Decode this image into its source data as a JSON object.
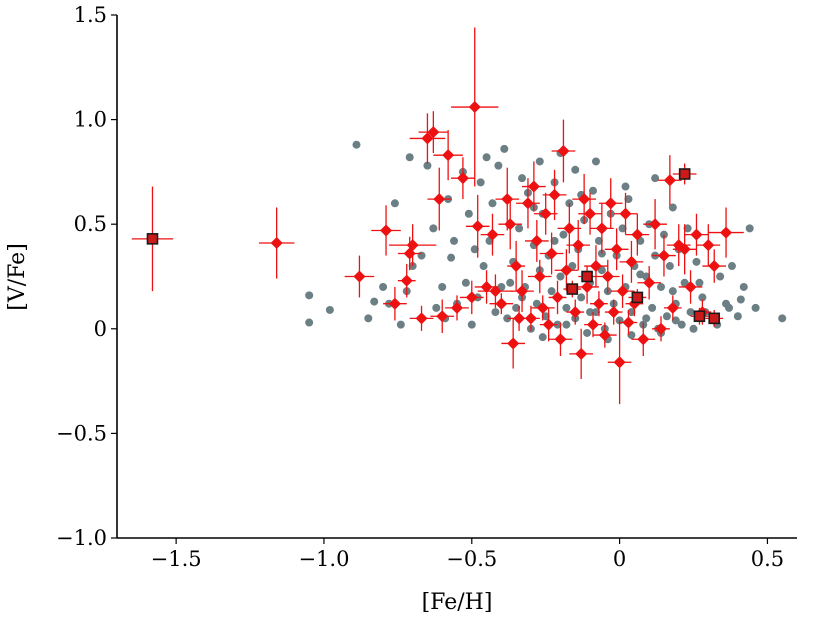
{
  "chart_data": {
    "type": "scatter",
    "title": "",
    "xlabel": "[Fe/H]",
    "ylabel": "[V/Fe]",
    "xlim": [
      -1.7,
      0.6
    ],
    "ylim": [
      -1.0,
      1.5
    ],
    "xticks": [
      -1.5,
      -1.0,
      -0.5,
      0,
      0.5
    ],
    "xtick_labels": [
      "−1.5",
      "−1.0",
      "−0.5",
      "0",
      "0.5"
    ],
    "yticks": [
      -1.0,
      -0.5,
      0,
      0.5,
      1.0,
      1.5
    ],
    "ytick_labels": [
      "−1.0",
      "−0.5",
      "0",
      "0.5",
      "1.0",
      "1.5"
    ],
    "grid": false,
    "legend": "none",
    "colors": {
      "comparison": "#6b7f85",
      "sample": "#ee1111",
      "highlight_fill": "#cc1a1a",
      "highlight_edge": "#1a1a1a"
    },
    "series": [
      {
        "marker": "circle",
        "points": [
          [
            -0.89,
            0.88
          ],
          [
            -1.05,
            0.16
          ],
          [
            -1.05,
            0.03
          ],
          [
            -0.98,
            0.09
          ],
          [
            -0.83,
            0.13
          ],
          [
            -0.78,
            0.12
          ],
          [
            -0.85,
            0.05
          ],
          [
            -0.8,
            0.2
          ],
          [
            -0.74,
            0.02
          ],
          [
            -0.72,
            0.18
          ],
          [
            -0.7,
            0.3
          ],
          [
            -0.76,
            0.6
          ],
          [
            -0.71,
            0.82
          ],
          [
            -0.65,
            0.78
          ],
          [
            -0.62,
            0.1
          ],
          [
            -0.6,
            0.2
          ],
          [
            -0.57,
            0.34
          ],
          [
            -0.55,
            0.12
          ],
          [
            -0.52,
            0.22
          ],
          [
            -0.5,
            0.02
          ],
          [
            -0.48,
            0.15
          ],
          [
            -0.46,
            0.3
          ],
          [
            -0.44,
            0.42
          ],
          [
            -0.43,
            0.6
          ],
          [
            -0.41,
            0.78
          ],
          [
            -0.4,
            0.2
          ],
          [
            -0.38,
            0.05
          ],
          [
            -0.36,
            0.32
          ],
          [
            -0.35,
            0.1
          ],
          [
            -0.34,
            0.48
          ],
          [
            -0.32,
            0.2
          ],
          [
            -0.31,
            0.65
          ],
          [
            -0.3,
            0.0
          ],
          [
            -0.29,
            0.4
          ],
          [
            -0.28,
            0.12
          ],
          [
            -0.27,
            0.28
          ],
          [
            -0.26,
            0.55
          ],
          [
            -0.25,
            0.06
          ],
          [
            -0.24,
            0.35
          ],
          [
            -0.23,
            0.18
          ],
          [
            -0.22,
            0.7
          ],
          [
            -0.21,
            0.02
          ],
          [
            -0.2,
            0.25
          ],
          [
            -0.19,
            0.45
          ],
          [
            -0.18,
            0.1
          ],
          [
            -0.17,
            0.6
          ],
          [
            -0.16,
            0.3
          ],
          [
            -0.15,
            0.05
          ],
          [
            -0.14,
            0.38
          ],
          [
            -0.13,
            0.15
          ],
          [
            -0.12,
            0.52
          ],
          [
            -0.11,
            -0.02
          ],
          [
            -0.1,
            0.22
          ],
          [
            -0.09,
            0.66
          ],
          [
            -0.08,
            0.08
          ],
          [
            -0.07,
            0.42
          ],
          [
            -0.06,
            0.28
          ],
          [
            -0.05,
            0.0
          ],
          [
            -0.04,
            0.18
          ],
          [
            -0.03,
            0.55
          ],
          [
            -0.02,
            0.12
          ],
          [
            -0.01,
            0.35
          ],
          [
            0.0,
            0.04
          ],
          [
            0.01,
            0.48
          ],
          [
            0.02,
            0.2
          ],
          [
            0.03,
            0.62
          ],
          [
            0.04,
            0.08
          ],
          [
            0.05,
            0.3
          ],
          [
            0.06,
            0.15
          ],
          [
            0.07,
            0.42
          ],
          [
            0.08,
            0.02
          ],
          [
            0.09,
            0.25
          ],
          [
            0.1,
            0.5
          ],
          [
            0.11,
            0.1
          ],
          [
            0.12,
            0.35
          ],
          [
            0.13,
            0.0
          ],
          [
            0.14,
            0.2
          ],
          [
            0.15,
            0.45
          ],
          [
            0.16,
            0.06
          ],
          [
            0.17,
            0.3
          ],
          [
            0.18,
            0.58
          ],
          [
            0.19,
            0.12
          ],
          [
            0.2,
            0.38
          ],
          [
            0.21,
            0.02
          ],
          [
            0.22,
            0.22
          ],
          [
            0.23,
            0.48
          ],
          [
            0.24,
            0.08
          ],
          [
            0.26,
            0.32
          ],
          [
            0.28,
            0.15
          ],
          [
            0.3,
            0.4
          ],
          [
            0.32,
            0.05
          ],
          [
            0.34,
            0.25
          ],
          [
            0.36,
            0.12
          ],
          [
            0.38,
            0.3
          ],
          [
            0.4,
            0.06
          ],
          [
            0.42,
            0.2
          ],
          [
            0.44,
            0.48
          ],
          [
            0.46,
            0.1
          ],
          [
            0.55,
            0.05
          ],
          [
            -0.58,
            0.62
          ],
          [
            -0.53,
            0.75
          ],
          [
            -0.47,
            0.7
          ],
          [
            -0.45,
            0.82
          ],
          [
            -0.39,
            0.86
          ],
          [
            -0.33,
            0.72
          ],
          [
            -0.27,
            0.8
          ],
          [
            -0.2,
            0.84
          ],
          [
            -0.15,
            0.76
          ],
          [
            -0.08,
            0.8
          ],
          [
            0.12,
            0.72
          ],
          [
            -0.67,
            0.35
          ],
          [
            -0.63,
            0.48
          ],
          [
            -0.59,
            0.05
          ],
          [
            -0.56,
            0.42
          ],
          [
            -0.51,
            0.55
          ],
          [
            -0.49,
            0.38
          ],
          [
            -0.42,
            0.08
          ],
          [
            -0.37,
            0.22
          ],
          [
            -0.33,
            0.15
          ],
          [
            -0.26,
            -0.04
          ],
          [
            -0.18,
            0.02
          ],
          [
            -0.1,
            0.08
          ],
          [
            -0.04,
            -0.05
          ],
          [
            0.04,
            -0.03
          ],
          [
            0.09,
            0.05
          ],
          [
            0.14,
            -0.02
          ],
          [
            0.19,
            0.04
          ],
          [
            0.25,
            0.0
          ],
          [
            0.29,
            0.08
          ],
          [
            0.33,
            0.02
          ],
          [
            0.37,
            0.1
          ],
          [
            0.41,
            0.14
          ],
          [
            -0.22,
            0.42
          ],
          [
            -0.06,
            0.36
          ],
          [
            0.07,
            0.26
          ],
          [
            0.18,
            0.18
          ],
          [
            0.27,
            0.22
          ],
          [
            -0.29,
            0.58
          ],
          [
            -0.13,
            0.64
          ],
          [
            0.02,
            0.68
          ]
        ]
      },
      {
        "marker": "diamond",
        "points": [
          [
            -1.16,
            0.41,
            0.06,
            0.17
          ],
          [
            -0.88,
            0.25,
            0.05,
            0.1
          ],
          [
            -0.79,
            0.47,
            0.05,
            0.12
          ],
          [
            -0.76,
            0.12,
            0.04,
            0.08
          ],
          [
            -0.72,
            0.23,
            0.03,
            0.08
          ],
          [
            -0.71,
            0.36,
            0.04,
            0.08
          ],
          [
            -0.7,
            0.4,
            0.08,
            0.1
          ],
          [
            -0.67,
            0.05,
            0.04,
            0.06
          ],
          [
            -0.65,
            0.91,
            0.06,
            0.12
          ],
          [
            -0.63,
            0.94,
            0.05,
            0.1
          ],
          [
            -0.61,
            0.62,
            0.04,
            0.15
          ],
          [
            -0.6,
            0.06,
            0.04,
            0.08
          ],
          [
            -0.58,
            0.83,
            0.05,
            0.12
          ],
          [
            -0.53,
            0.72,
            0.04,
            0.1
          ],
          [
            -0.5,
            0.15,
            0.04,
            0.08
          ],
          [
            -0.49,
            1.06,
            0.08,
            0.38
          ],
          [
            -0.48,
            0.49,
            0.04,
            0.15
          ],
          [
            -0.45,
            0.2,
            0.04,
            0.08
          ],
          [
            -0.42,
            0.18,
            0.06,
            0.08
          ],
          [
            -0.4,
            0.12,
            0.04,
            0.05
          ],
          [
            -0.38,
            0.62,
            0.04,
            0.15
          ],
          [
            -0.37,
            0.5,
            0.04,
            0.12
          ],
          [
            -0.36,
            -0.07,
            0.04,
            0.12
          ],
          [
            -0.35,
            0.3,
            0.03,
            0.12
          ],
          [
            -0.33,
            0.18,
            0.04,
            0.1
          ],
          [
            -0.31,
            0.6,
            0.04,
            0.12
          ],
          [
            -0.3,
            0.05,
            0.03,
            0.06
          ],
          [
            -0.29,
            0.68,
            0.04,
            0.12
          ],
          [
            -0.28,
            0.42,
            0.04,
            0.1
          ],
          [
            -0.27,
            0.25,
            0.04,
            0.08
          ],
          [
            -0.26,
            0.1,
            0.04,
            0.06
          ],
          [
            -0.25,
            0.55,
            0.04,
            0.1
          ],
          [
            -0.24,
            0.02,
            0.03,
            0.08
          ],
          [
            -0.23,
            0.36,
            0.04,
            0.1
          ],
          [
            -0.22,
            0.64,
            0.04,
            0.12
          ],
          [
            -0.21,
            0.15,
            0.03,
            0.08
          ],
          [
            -0.2,
            -0.05,
            0.04,
            0.08
          ],
          [
            -0.19,
            0.85,
            0.04,
            0.15
          ],
          [
            -0.18,
            0.28,
            0.04,
            0.1
          ],
          [
            -0.17,
            0.48,
            0.04,
            0.12
          ],
          [
            -0.15,
            0.08,
            0.03,
            0.06
          ],
          [
            -0.14,
            0.4,
            0.04,
            0.12
          ],
          [
            -0.13,
            -0.12,
            0.04,
            0.12
          ],
          [
            -0.12,
            0.62,
            0.04,
            0.12
          ],
          [
            -0.11,
            0.2,
            0.04,
            0.08
          ],
          [
            -0.1,
            0.55,
            0.04,
            0.1
          ],
          [
            -0.09,
            0.02,
            0.03,
            0.06
          ],
          [
            -0.08,
            0.3,
            0.04,
            0.1
          ],
          [
            -0.07,
            0.12,
            0.03,
            0.06
          ],
          [
            -0.06,
            0.48,
            0.04,
            0.12
          ],
          [
            -0.05,
            -0.03,
            0.04,
            0.06
          ],
          [
            -0.04,
            0.25,
            0.04,
            0.08
          ],
          [
            -0.03,
            0.6,
            0.04,
            0.12
          ],
          [
            -0.02,
            0.08,
            0.03,
            0.06
          ],
          [
            -0.01,
            0.38,
            0.04,
            0.1
          ],
          [
            0.0,
            -0.16,
            0.04,
            0.2
          ],
          [
            0.01,
            0.18,
            0.04,
            0.08
          ],
          [
            0.02,
            0.55,
            0.04,
            0.1
          ],
          [
            0.03,
            0.03,
            0.03,
            0.06
          ],
          [
            0.04,
            0.32,
            0.04,
            0.1
          ],
          [
            0.05,
            0.12,
            0.03,
            0.06
          ],
          [
            0.06,
            0.45,
            0.04,
            0.1
          ],
          [
            0.08,
            -0.05,
            0.04,
            0.08
          ],
          [
            0.1,
            0.22,
            0.04,
            0.08
          ],
          [
            0.12,
            0.5,
            0.04,
            0.12
          ],
          [
            0.14,
            0.0,
            0.03,
            0.06
          ],
          [
            0.15,
            0.35,
            0.04,
            0.1
          ],
          [
            0.17,
            0.71,
            0.04,
            0.12
          ],
          [
            0.18,
            0.1,
            0.03,
            0.06
          ],
          [
            0.2,
            0.4,
            0.04,
            0.1
          ],
          [
            0.22,
            0.38,
            0.04,
            0.12
          ],
          [
            0.24,
            0.2,
            0.04,
            0.08
          ],
          [
            0.26,
            0.45,
            0.04,
            0.1
          ],
          [
            0.28,
            0.08,
            0.03,
            0.06
          ],
          [
            0.3,
            0.4,
            0.04,
            0.1
          ],
          [
            0.32,
            0.3,
            0.04,
            0.08
          ],
          [
            0.36,
            0.46,
            0.06,
            0.12
          ],
          [
            -0.55,
            0.1,
            0.04,
            0.06
          ],
          [
            -0.43,
            0.45,
            0.04,
            0.1
          ],
          [
            -0.34,
            0.05,
            0.04,
            0.06
          ]
        ]
      },
      {
        "marker": "square",
        "points": [
          [
            -1.58,
            0.43,
            0.07,
            0.25
          ],
          [
            0.22,
            0.74,
            0.04,
            0.05
          ],
          [
            -0.11,
            0.25,
            0.03,
            0.05
          ],
          [
            -0.16,
            0.19,
            0.03,
            0.04
          ],
          [
            0.06,
            0.15,
            0.03,
            0.04
          ],
          [
            0.27,
            0.06,
            0.03,
            0.04
          ],
          [
            0.32,
            0.05,
            0.03,
            0.04
          ]
        ]
      }
    ]
  }
}
